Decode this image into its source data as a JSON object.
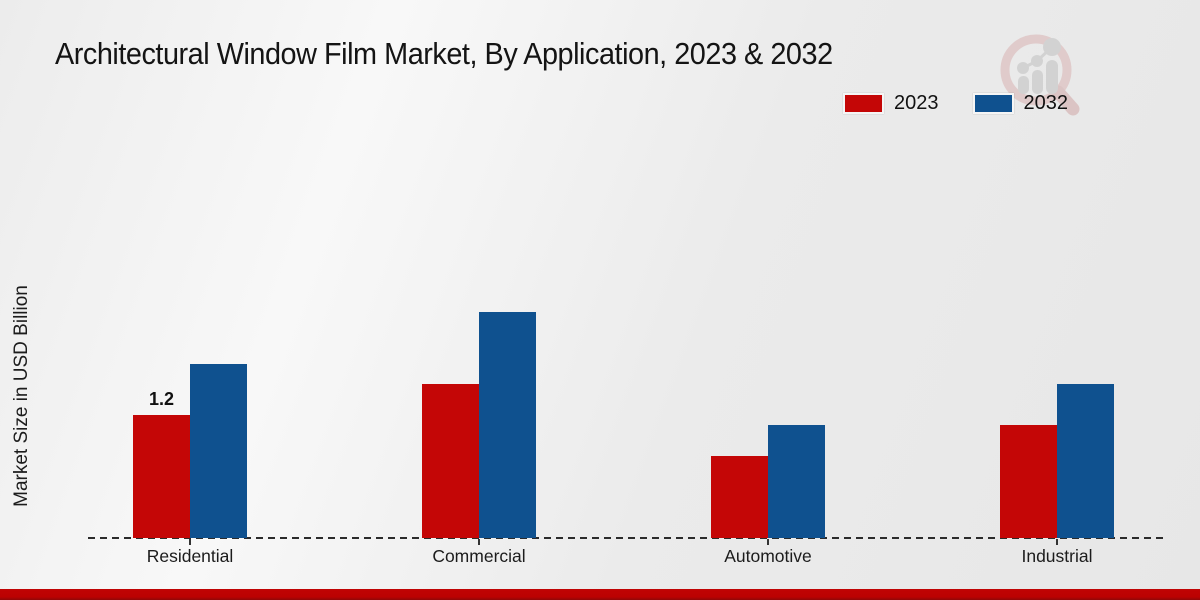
{
  "page": {
    "title": "Architectural Window Film Market, By Application, 2023 & 2032"
  },
  "legend": {
    "items": [
      {
        "label": "2023",
        "color": "#c40606"
      },
      {
        "label": "2032",
        "color": "#0f518f"
      }
    ],
    "position": "top-right"
  },
  "colors": {
    "series_2023": "#c40606",
    "series_2032": "#0f518f",
    "bottom_strip": "#bb0202",
    "baseline": "#2b2b2b"
  },
  "watermark": {
    "icon": "magnifier-growth-chart-logo"
  },
  "chart_data": {
    "type": "bar",
    "title": "Architectural Window Film Market, By Application, 2023 & 2032",
    "xlabel": "",
    "ylabel": "Market Size in USD Billion",
    "categories": [
      "Residential",
      "Commercial",
      "Automotive",
      "Industrial"
    ],
    "series": [
      {
        "name": "2023",
        "color": "#c40606",
        "values": [
          1.2,
          1.5,
          0.8,
          1.1
        ],
        "value_labels": [
          "1.2",
          "",
          "",
          ""
        ]
      },
      {
        "name": "2032",
        "color": "#0f518f",
        "values": [
          1.7,
          2.2,
          1.1,
          1.5
        ],
        "value_labels": [
          "",
          "",
          "",
          ""
        ]
      }
    ],
    "ylim": [
      0,
      2.5
    ],
    "gridlines": false,
    "baseline_style": "dashed",
    "legend_position": "top-right"
  }
}
